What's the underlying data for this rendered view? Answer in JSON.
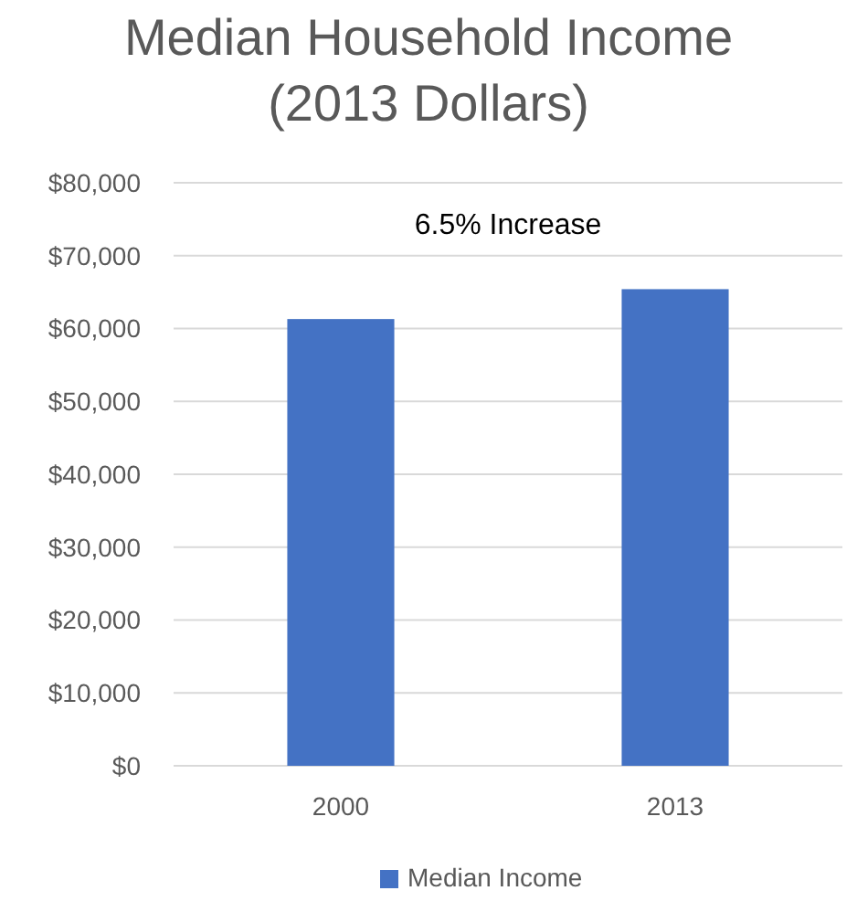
{
  "chart_data": {
    "type": "bar",
    "title": "Median Household Income\n(2013 Dollars)",
    "categories": [
      "2000",
      "2013"
    ],
    "series": [
      {
        "name": "Median Income",
        "color": "#4472c4",
        "values": [
          61300,
          65400
        ]
      }
    ],
    "ylim": [
      0,
      80000
    ],
    "yticks": [
      {
        "value": 0,
        "label": "$0"
      },
      {
        "value": 10000,
        "label": "$10,000"
      },
      {
        "value": 20000,
        "label": "$20,000"
      },
      {
        "value": 30000,
        "label": "$30,000"
      },
      {
        "value": 40000,
        "label": "$40,000"
      },
      {
        "value": 50000,
        "label": "$50,000"
      },
      {
        "value": 60000,
        "label": "$60,000"
      },
      {
        "value": 70000,
        "label": "$70,000"
      },
      {
        "value": 80000,
        "label": "$80,000"
      }
    ],
    "grid": "y",
    "legend": "bottom",
    "annotations": [
      "6.5% Increase"
    ]
  }
}
